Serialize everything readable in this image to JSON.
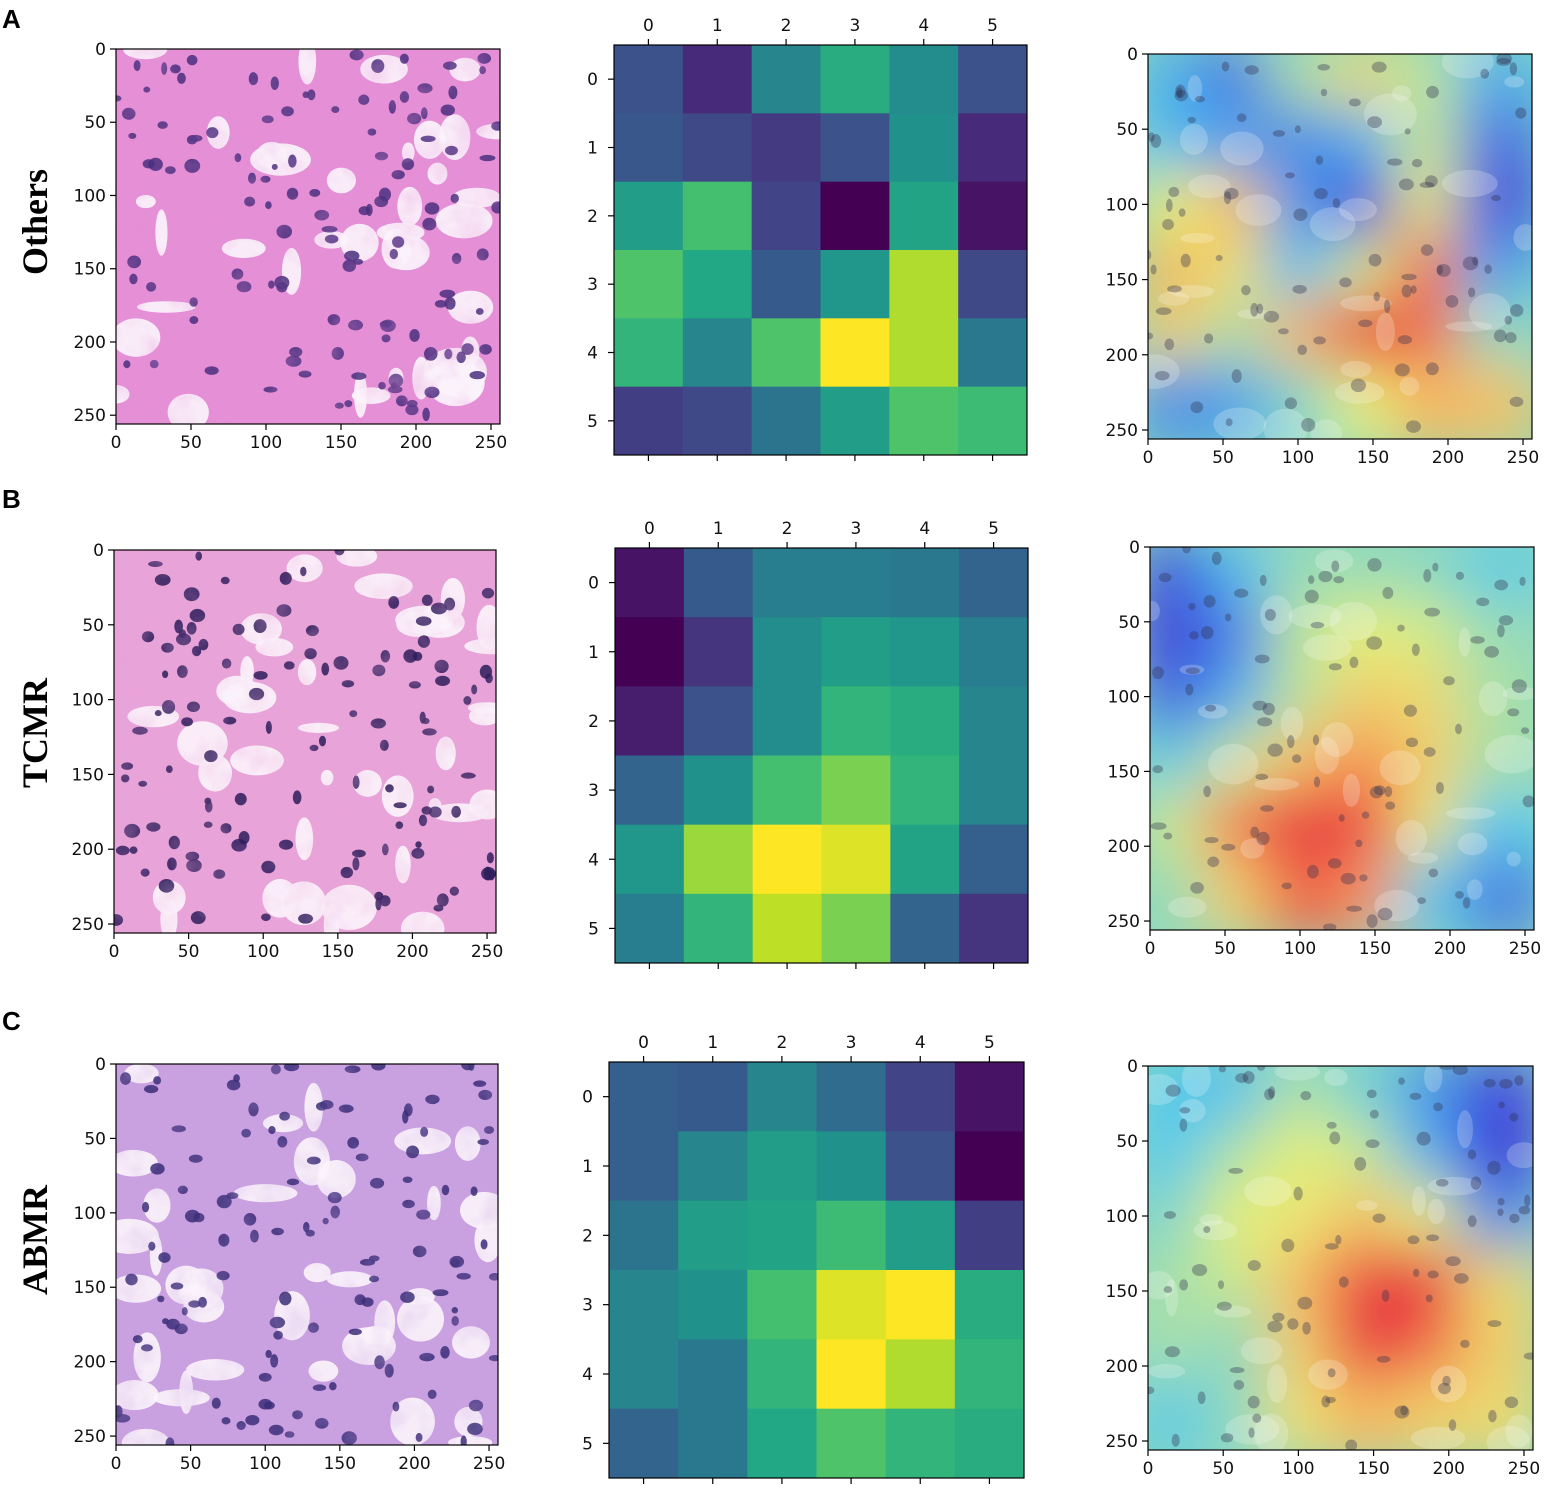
{
  "panels": [
    {
      "letter": "A",
      "row_label": "Others"
    },
    {
      "letter": "B",
      "row_label": "TCMR"
    },
    {
      "letter": "C",
      "row_label": "ABMR"
    }
  ],
  "colors": {
    "he_stain_pink": "#e38fd0",
    "he_stain_purple": "#b58ad6",
    "nucleus": "#3b2a6e",
    "viridis_low": "#440154",
    "viridis_mid": "#21918c",
    "viridis_high": "#fde725"
  },
  "chart_data": [
    {
      "type": "image",
      "panel": "A",
      "content": "H&E histology tile",
      "xlim": [
        0,
        256
      ],
      "ylim": [
        256,
        0
      ],
      "xticks": [
        0,
        50,
        100,
        150,
        200,
        250
      ],
      "yticks": [
        0,
        50,
        100,
        150,
        200,
        250
      ]
    },
    {
      "type": "heatmap",
      "panel": "A",
      "colormap": "viridis",
      "x_ticks_top": [
        0,
        1,
        2,
        3,
        4,
        5
      ],
      "y_ticks": [
        0,
        1,
        2,
        3,
        4,
        5
      ],
      "values": [
        [
          0.25,
          0.12,
          0.45,
          0.62,
          0.48,
          0.25
        ],
        [
          0.27,
          0.22,
          0.17,
          0.25,
          0.5,
          0.12
        ],
        [
          0.55,
          0.7,
          0.2,
          0.0,
          0.58,
          0.05
        ],
        [
          0.72,
          0.6,
          0.28,
          0.52,
          0.88,
          0.22
        ],
        [
          0.65,
          0.45,
          0.72,
          1.0,
          0.88,
          0.4
        ],
        [
          0.18,
          0.22,
          0.38,
          0.55,
          0.72,
          0.68
        ]
      ]
    },
    {
      "type": "image",
      "panel": "A",
      "content": "Grad-CAM overlay on tile",
      "xlim": [
        0,
        256
      ],
      "ylim": [
        256,
        0
      ],
      "xticks": [
        0,
        50,
        100,
        150,
        200,
        250
      ],
      "yticks": [
        0,
        50,
        100,
        150,
        200,
        250
      ]
    },
    {
      "type": "image",
      "panel": "B",
      "content": "H&E histology tile",
      "xlim": [
        0,
        256
      ],
      "ylim": [
        256,
        0
      ],
      "xticks": [
        0,
        50,
        100,
        150,
        200,
        250
      ],
      "yticks": [
        0,
        50,
        100,
        150,
        200,
        250
      ]
    },
    {
      "type": "heatmap",
      "panel": "B",
      "colormap": "viridis",
      "x_ticks_top": [
        0,
        1,
        2,
        3,
        4,
        5
      ],
      "y_ticks": [
        0,
        1,
        2,
        3,
        4,
        5
      ],
      "values": [
        [
          0.05,
          0.28,
          0.42,
          0.42,
          0.4,
          0.32
        ],
        [
          0.0,
          0.15,
          0.48,
          0.55,
          0.52,
          0.42
        ],
        [
          0.08,
          0.25,
          0.48,
          0.65,
          0.62,
          0.45
        ],
        [
          0.32,
          0.5,
          0.7,
          0.8,
          0.65,
          0.45
        ],
        [
          0.52,
          0.85,
          1.0,
          0.95,
          0.58,
          0.3
        ],
        [
          0.42,
          0.65,
          0.9,
          0.8,
          0.32,
          0.15
        ]
      ]
    },
    {
      "type": "image",
      "panel": "B",
      "content": "Grad-CAM overlay on tile",
      "xlim": [
        0,
        256
      ],
      "ylim": [
        256,
        0
      ],
      "xticks": [
        0,
        50,
        100,
        150,
        200,
        250
      ],
      "yticks": [
        0,
        50,
        100,
        150,
        200,
        250
      ]
    },
    {
      "type": "image",
      "panel": "C",
      "content": "H&E histology tile",
      "xlim": [
        0,
        256
      ],
      "ylim": [
        256,
        0
      ],
      "xticks": [
        0,
        50,
        100,
        150,
        200,
        250
      ],
      "yticks": [
        0,
        50,
        100,
        150,
        200,
        250
      ]
    },
    {
      "type": "heatmap",
      "panel": "C",
      "colormap": "viridis",
      "x_ticks_top": [
        0,
        1,
        2,
        3,
        4,
        5
      ],
      "y_ticks": [
        0,
        1,
        2,
        3,
        4,
        5
      ],
      "values": [
        [
          0.3,
          0.28,
          0.45,
          0.35,
          0.2,
          0.05
        ],
        [
          0.3,
          0.45,
          0.55,
          0.5,
          0.25,
          0.0
        ],
        [
          0.38,
          0.55,
          0.58,
          0.68,
          0.55,
          0.18
        ],
        [
          0.45,
          0.5,
          0.7,
          0.95,
          1.0,
          0.62
        ],
        [
          0.45,
          0.4,
          0.65,
          1.0,
          0.88,
          0.65
        ],
        [
          0.32,
          0.4,
          0.6,
          0.72,
          0.65,
          0.62
        ]
      ]
    },
    {
      "type": "image",
      "panel": "C",
      "content": "Grad-CAM overlay on tile",
      "xlim": [
        0,
        256
      ],
      "ylim": [
        256,
        0
      ],
      "xticks": [
        0,
        50,
        100,
        150,
        200,
        250
      ],
      "yticks": [
        0,
        50,
        100,
        150,
        200,
        250
      ]
    }
  ]
}
